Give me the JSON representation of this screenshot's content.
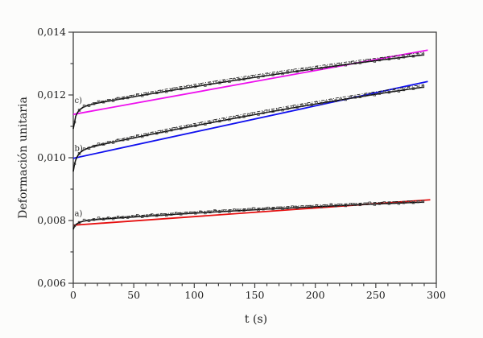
{
  "figure": {
    "background": "#fcfcfb",
    "frame_color": "#3f3f3f",
    "text_color": "#1d1d1d",
    "curve_color": "#0a0a0a",
    "marker_color": "#3c3c3c"
  },
  "axes": {
    "x": {
      "label": "t (s)",
      "min": 0,
      "max": 300,
      "major_step": 50,
      "minor_step": 10,
      "tick_labels": [
        "0",
        "50",
        "100",
        "150",
        "200",
        "250",
        "300"
      ]
    },
    "y": {
      "label": "Deformación unitaria",
      "min": 0.006,
      "max": 0.014,
      "major_step": 0.002,
      "minor_step": 0.001,
      "tick_labels": [
        "0,006",
        "0,008",
        "0,010",
        "0,012",
        "0,014"
      ]
    }
  },
  "chart_data": {
    "type": "line",
    "title": "",
    "xlabel": "t (s)",
    "ylabel": "Deformación unitaria",
    "xlim": [
      0,
      300
    ],
    "ylim": [
      0.006,
      0.014
    ],
    "grid": false,
    "legend": "none",
    "marker_jitter": [
      2,
      0,
      3,
      -1,
      1,
      4,
      0,
      2,
      -1,
      3,
      1,
      0,
      2,
      4,
      -1,
      1,
      3,
      0,
      2,
      -1,
      1,
      3,
      0,
      2
    ],
    "marker_jitter_unit": 1e-05,
    "series_groups": [
      {
        "id": "a",
        "label": "a)",
        "label_pos": {
          "t": 1.0,
          "y": 0.00814
        },
        "fit": {
          "name": "ajuste lineal a",
          "color": "#e60f0f",
          "t": [
            0,
            295
          ],
          "y": [
            0.00785,
            0.00866
          ]
        },
        "curve": {
          "name": "deformación a",
          "color": "#0a0a0a",
          "t": [
            0,
            1,
            2,
            3,
            4,
            5,
            6,
            8,
            10,
            12,
            15,
            20,
            25,
            30,
            40,
            50,
            60,
            80,
            100,
            120,
            140,
            160,
            180,
            200,
            220,
            240,
            260,
            275,
            290
          ],
          "y": [
            0.00772,
            0.007815,
            0.007863,
            0.007893,
            0.007917,
            0.007936,
            0.007951,
            0.007973,
            0.007989,
            0.008002,
            0.008015,
            0.008033,
            0.008047,
            0.008061,
            0.008087,
            0.008113,
            0.008138,
            0.008186,
            0.008233,
            0.008278,
            0.008321,
            0.008362,
            0.008402,
            0.008439,
            0.008475,
            0.008509,
            0.008541,
            0.008564,
            0.008586
          ]
        },
        "dash_offset_end": 5e-05,
        "dash_ramp_tau": 40,
        "marker_step": 4,
        "marker_size": 2.6
      },
      {
        "id": "b",
        "label": "b)",
        "label_pos": {
          "t": 1.0,
          "y": 0.01022
        },
        "fit": {
          "name": "ajuste lineal b",
          "color": "#1010ee",
          "t": [
            0,
            293
          ],
          "y": [
            0.00998,
            0.01243
          ]
        },
        "curve": {
          "name": "deformación b",
          "color": "#0a0a0a",
          "t": [
            0,
            1,
            2,
            3,
            4,
            5,
            6,
            8,
            10,
            12,
            15,
            20,
            25,
            30,
            40,
            50,
            60,
            80,
            100,
            120,
            140,
            160,
            180,
            200,
            220,
            240,
            260,
            275,
            290
          ],
          "y": [
            0.00956,
            0.00979,
            0.009925,
            0.010014,
            0.01008,
            0.010132,
            0.010171,
            0.010229,
            0.01027,
            0.010301,
            0.010338,
            0.010387,
            0.01043,
            0.010473,
            0.010553,
            0.010632,
            0.010711,
            0.010865,
            0.011015,
            0.011161,
            0.011304,
            0.011444,
            0.011579,
            0.01171,
            0.011837,
            0.011961,
            0.012082,
            0.012169,
            0.012254
          ]
        },
        "dash_offset_end": 8e-05,
        "dash_ramp_tau": 40,
        "marker_step": 4,
        "marker_size": 2.6
      },
      {
        "id": "c",
        "label": "c)",
        "label_pos": {
          "t": 1.0,
          "y": 0.011745
        },
        "fit": {
          "name": "ajuste lineal c",
          "color": "#ee10ee",
          "t": [
            0,
            293
          ],
          "y": [
            0.01138,
            0.01343
          ]
        },
        "curve": {
          "name": "deformación c",
          "color": "#0a0a0a",
          "t": [
            0,
            1,
            2,
            3,
            4,
            5,
            6,
            8,
            10,
            12,
            15,
            20,
            25,
            30,
            40,
            50,
            60,
            80,
            100,
            120,
            140,
            160,
            180,
            200,
            220,
            240,
            260,
            275,
            290
          ],
          "y": [
            0.01092,
            0.011118,
            0.01132,
            0.011403,
            0.011465,
            0.011513,
            0.011549,
            0.011602,
            0.011639,
            0.011662,
            0.011697,
            0.011739,
            0.011776,
            0.011811,
            0.011878,
            0.011944,
            0.01201,
            0.012138,
            0.012263,
            0.012384,
            0.012502,
            0.012617,
            0.012728,
            0.012836,
            0.012941,
            0.013042,
            0.01314,
            0.013211,
            0.01328
          ]
        },
        "dash_offset_end": 8e-05,
        "dash_ramp_tau": 40,
        "marker_step": 4,
        "marker_size": 2.6
      }
    ]
  }
}
